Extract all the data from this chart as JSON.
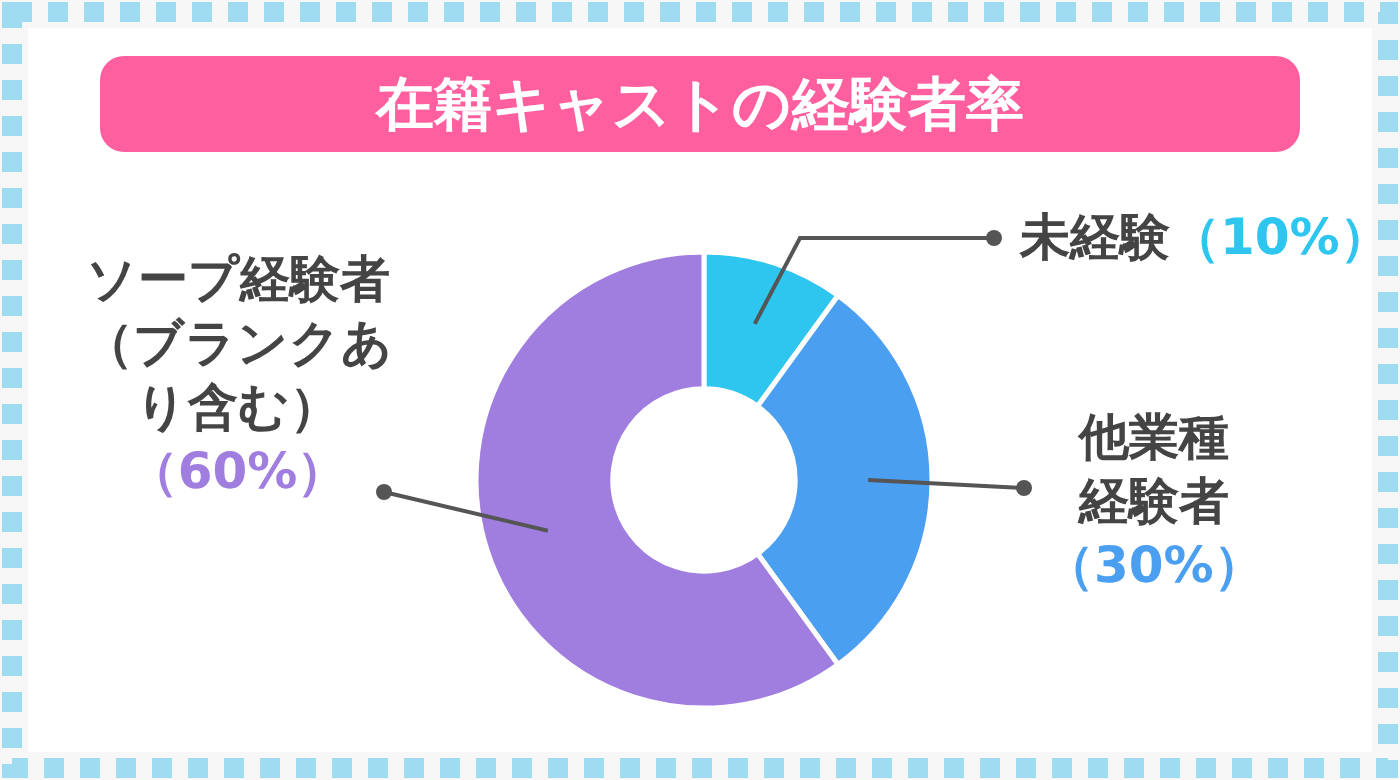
{
  "chart_data": {
    "type": "donut",
    "title": "在籍キャストの経験者率",
    "categories": [
      "未経験",
      "他業種経験者",
      "ソープ経験者（ブランクあり含む）"
    ],
    "values": [
      10,
      30,
      60
    ],
    "colors": [
      "#2ec5ee",
      "#4b9ff0",
      "#a07ee0"
    ],
    "value_labels": [
      "（10%）",
      "（30%）",
      "（60%）"
    ]
  }
}
